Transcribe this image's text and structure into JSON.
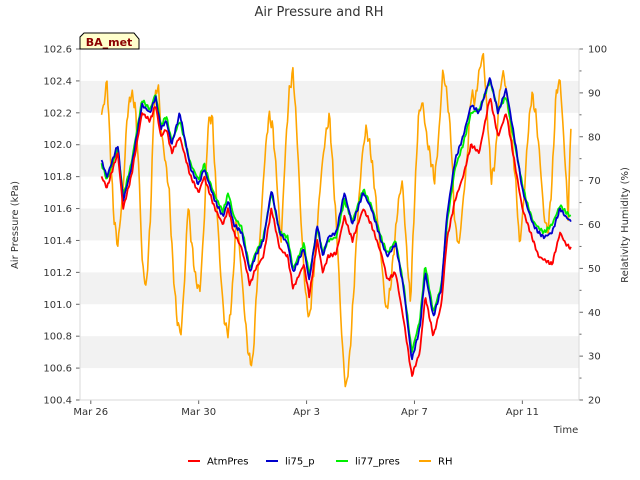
{
  "chart_data": {
    "type": "line",
    "title": "Air Pressure and RH",
    "site_label": "BA_met",
    "xlabel": "Time",
    "ylabel_left": "Air Pressure (kPa)",
    "ylabel_right": "Relativity Humidity (%)",
    "x_range_days": [
      "Mar 25 16:00",
      "Apr 13 06:00"
    ],
    "x_ticks": [
      {
        "day": 0,
        "label": "Mar 26"
      },
      {
        "day": 4,
        "label": "Mar 30"
      },
      {
        "day": 8,
        "label": "Apr 3"
      },
      {
        "day": 12,
        "label": "Apr 7"
      },
      {
        "day": 16,
        "label": "Apr 11"
      }
    ],
    "x_day_start": -0.4,
    "x_day_end": 18.1,
    "ylim_left": [
      100.4,
      102.6
    ],
    "yticks_left": [
      "100.4",
      "100.6",
      "100.8",
      "101.0",
      "101.2",
      "101.4",
      "101.6",
      "101.8",
      "102.0",
      "102.2",
      "102.4",
      "102.6"
    ],
    "ylim_right": [
      20,
      100
    ],
    "yticks_right": [
      "20",
      "30",
      "40",
      "50",
      "60",
      "70",
      "80",
      "90",
      "100"
    ],
    "grid": "horizontal bands",
    "legend_position": "bottom",
    "series": [
      {
        "name": "AtmPres",
        "axis": "left",
        "color": "#ff0000",
        "x": [
          0.4,
          0.6,
          1.0,
          1.2,
          1.5,
          1.9,
          2.2,
          2.4,
          2.6,
          2.8,
          3.0,
          3.3,
          3.7,
          4.0,
          4.2,
          4.3,
          4.6,
          4.9,
          5.1,
          5.3,
          5.6,
          5.9,
          6.1,
          6.4,
          6.7,
          7.0,
          7.3,
          7.5,
          7.9,
          8.1,
          8.4,
          8.6,
          8.8,
          9.1,
          9.4,
          9.7,
          10.1,
          10.4,
          10.8,
          11.0,
          11.3,
          11.6,
          11.9,
          12.2,
          12.4,
          12.7,
          13.0,
          13.2,
          13.5,
          13.8,
          14.1,
          14.4,
          14.8,
          15.1,
          15.4,
          15.7,
          16.0,
          16.2,
          16.4,
          16.6,
          16.8,
          17.1,
          17.4,
          17.6,
          17.8
        ],
        "y": [
          101.8,
          101.73,
          101.95,
          101.6,
          101.8,
          102.2,
          102.15,
          102.25,
          102.05,
          102.1,
          101.95,
          102.05,
          101.8,
          101.7,
          101.8,
          101.75,
          101.6,
          101.5,
          101.6,
          101.45,
          101.35,
          101.12,
          101.22,
          101.3,
          101.6,
          101.35,
          101.3,
          101.1,
          101.25,
          101.05,
          101.4,
          101.2,
          101.3,
          101.32,
          101.55,
          101.4,
          101.6,
          101.5,
          101.3,
          101.15,
          101.2,
          100.9,
          100.55,
          100.7,
          101.05,
          100.8,
          101.0,
          101.4,
          101.65,
          101.8,
          102.0,
          101.95,
          102.3,
          102.05,
          102.2,
          101.9,
          101.6,
          101.5,
          101.4,
          101.3,
          101.28,
          101.25,
          101.45,
          101.38,
          101.35
        ]
      },
      {
        "name": "li75_p",
        "axis": "left",
        "color": "#0000cc",
        "x": [
          0.4,
          0.6,
          1.0,
          1.2,
          1.5,
          1.9,
          2.2,
          2.4,
          2.6,
          2.8,
          3.0,
          3.3,
          3.7,
          4.0,
          4.2,
          4.3,
          4.6,
          4.9,
          5.1,
          5.3,
          5.6,
          5.9,
          6.1,
          6.4,
          6.7,
          7.0,
          7.3,
          7.5,
          7.9,
          8.1,
          8.4,
          8.6,
          8.8,
          9.1,
          9.4,
          9.7,
          10.1,
          10.4,
          10.8,
          11.0,
          11.3,
          11.6,
          11.9,
          12.2,
          12.4,
          12.7,
          13.0,
          13.2,
          13.5,
          13.8,
          14.1,
          14.4,
          14.8,
          15.1,
          15.4,
          15.7,
          16.0,
          16.2,
          16.4,
          16.6,
          16.8,
          17.1,
          17.4,
          17.6,
          17.8
        ],
        "y": [
          101.9,
          101.8,
          102.0,
          101.65,
          101.85,
          102.25,
          102.2,
          102.3,
          102.1,
          102.15,
          102.0,
          102.2,
          101.85,
          101.75,
          101.85,
          101.8,
          101.65,
          101.55,
          101.65,
          101.5,
          101.45,
          101.2,
          101.3,
          101.4,
          101.72,
          101.45,
          101.38,
          101.2,
          101.35,
          101.15,
          101.5,
          101.3,
          101.42,
          101.45,
          101.7,
          101.5,
          101.7,
          101.6,
          101.38,
          101.3,
          101.38,
          101.1,
          100.65,
          100.85,
          101.2,
          100.92,
          101.1,
          101.55,
          101.9,
          102.05,
          102.25,
          102.2,
          102.42,
          102.2,
          102.35,
          102.05,
          101.72,
          101.6,
          101.5,
          101.45,
          101.42,
          101.45,
          101.6,
          101.55,
          101.52
        ]
      },
      {
        "name": "li77_pres",
        "axis": "left",
        "color": "#00ee00",
        "x": [
          0.4,
          0.6,
          1.0,
          1.2,
          1.5,
          1.9,
          2.2,
          2.4,
          2.6,
          2.8,
          3.0,
          3.3,
          3.7,
          4.0,
          4.2,
          4.3,
          4.6,
          4.9,
          5.1,
          5.3,
          5.6,
          5.9,
          6.1,
          6.4,
          6.7,
          7.0,
          7.3,
          7.5,
          7.9,
          8.1,
          8.4,
          8.6,
          8.8,
          9.1,
          9.4,
          9.7,
          10.1,
          10.4,
          10.8,
          11.0,
          11.3,
          11.6,
          11.9,
          12.2,
          12.4,
          12.7,
          13.0,
          13.2,
          13.5,
          13.8,
          14.1,
          14.4,
          14.8,
          15.1,
          15.4,
          15.7,
          16.0,
          16.2,
          16.4,
          16.6,
          16.8,
          17.1,
          17.4,
          17.6,
          17.8
        ],
        "y": [
          101.88,
          101.78,
          101.98,
          101.68,
          101.88,
          102.28,
          102.22,
          102.32,
          102.12,
          102.18,
          102.02,
          102.15,
          101.88,
          101.78,
          101.88,
          101.82,
          101.68,
          101.58,
          101.7,
          101.55,
          101.48,
          101.22,
          101.32,
          101.42,
          101.7,
          101.45,
          101.42,
          101.22,
          101.38,
          101.18,
          101.48,
          101.32,
          101.4,
          101.42,
          101.65,
          101.52,
          101.72,
          101.62,
          101.4,
          101.32,
          101.4,
          101.12,
          100.7,
          100.9,
          101.25,
          100.95,
          101.12,
          101.5,
          101.85,
          102.0,
          102.2,
          102.22,
          102.4,
          102.22,
          102.3,
          102.02,
          101.75,
          101.62,
          101.52,
          101.48,
          101.45,
          101.5,
          101.62,
          101.58,
          101.55
        ]
      },
      {
        "name": "RH",
        "axis": "right",
        "color": "#ffa500",
        "x": [
          0.4,
          0.5,
          0.6,
          0.7,
          0.85,
          1.0,
          1.2,
          1.35,
          1.5,
          1.65,
          1.8,
          1.9,
          2.05,
          2.2,
          2.35,
          2.5,
          2.6,
          2.75,
          2.9,
          3.05,
          3.2,
          3.35,
          3.5,
          3.6,
          3.75,
          3.9,
          4.05,
          4.2,
          4.35,
          4.5,
          4.65,
          4.8,
          4.95,
          5.1,
          5.25,
          5.4,
          5.55,
          5.7,
          5.85,
          6.0,
          6.15,
          6.3,
          6.45,
          6.6,
          6.75,
          6.9,
          7.05,
          7.2,
          7.35,
          7.5,
          7.65,
          7.8,
          7.95,
          8.1,
          8.25,
          8.4,
          8.55,
          8.7,
          8.85,
          9.0,
          9.15,
          9.3,
          9.45,
          9.6,
          9.75,
          9.9,
          10.05,
          10.2,
          10.35,
          10.5,
          10.65,
          10.8,
          10.95,
          11.1,
          11.25,
          11.4,
          11.55,
          11.7,
          11.85,
          12.0,
          12.15,
          12.3,
          12.45,
          12.6,
          12.75,
          12.9,
          13.05,
          13.2,
          13.35,
          13.5,
          13.65,
          13.8,
          13.95,
          14.1,
          14.25,
          14.4,
          14.55,
          14.7,
          14.85,
          15.0,
          15.15,
          15.3,
          15.45,
          15.6,
          15.75,
          15.9,
          16.05,
          16.2,
          16.35,
          16.5,
          16.65,
          16.8,
          16.95,
          17.1,
          17.25,
          17.4,
          17.55,
          17.7,
          17.8
        ],
        "y": [
          85,
          88,
          93,
          80,
          62,
          55,
          68,
          85,
          90,
          87,
          70,
          52,
          45,
          60,
          88,
          92,
          82,
          75,
          68,
          50,
          38,
          35,
          50,
          65,
          55,
          47,
          45,
          60,
          83,
          85,
          67,
          50,
          38,
          35,
          45,
          62,
          52,
          40,
          30,
          28,
          45,
          60,
          75,
          85,
          82,
          70,
          55,
          75,
          90,
          95,
          80,
          60,
          45,
          38,
          48,
          60,
          72,
          80,
          85,
          70,
          55,
          35,
          22,
          30,
          45,
          62,
          75,
          82,
          78,
          70,
          60,
          50,
          40,
          45,
          55,
          65,
          70,
          55,
          42,
          65,
          85,
          88,
          80,
          75,
          70,
          80,
          95,
          90,
          80,
          60,
          55,
          65,
          75,
          90,
          88,
          95,
          99,
          85,
          70,
          75,
          90,
          95,
          88,
          80,
          70,
          55,
          65,
          80,
          90,
          85,
          75,
          62,
          58,
          70,
          90,
          93,
          78,
          62,
          83
        ]
      }
    ]
  }
}
